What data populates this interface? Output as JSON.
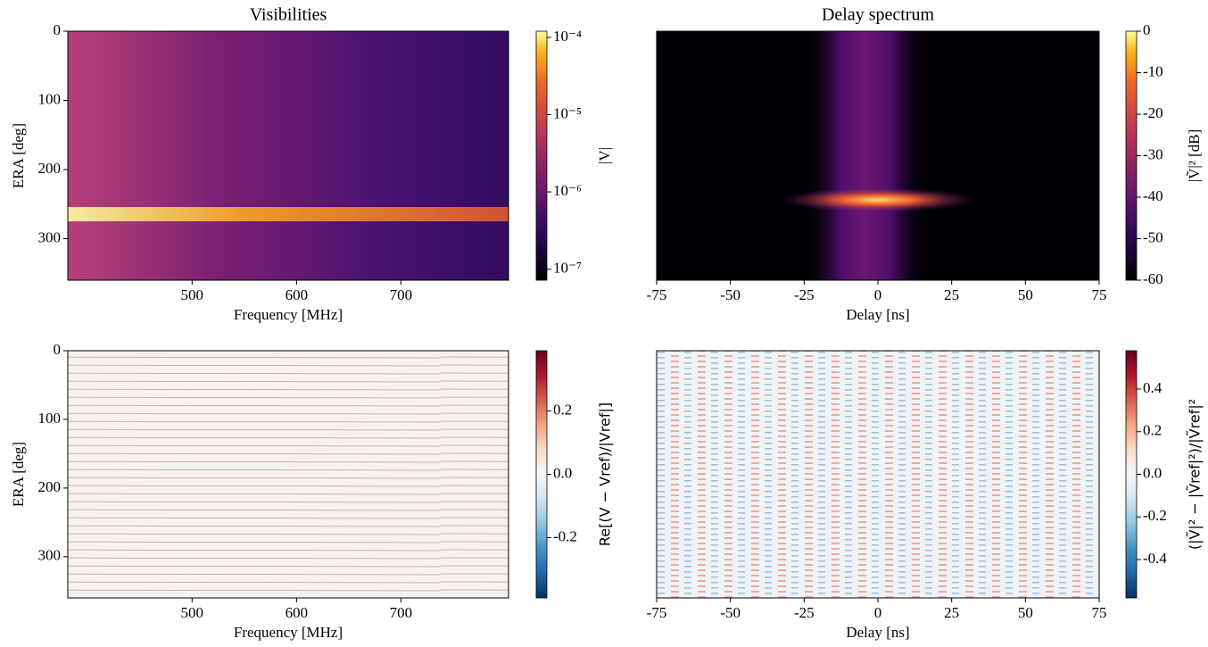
{
  "chart_data": [
    {
      "type": "heatmap",
      "title": "Visibilities",
      "xlabel": "Frequency [MHz]",
      "ylabel": "ERA [deg]",
      "xlim": [
        381,
        803
      ],
      "xticks": [
        500,
        600,
        700
      ],
      "ylim": [
        0,
        360
      ],
      "y_inverted": true,
      "yticks": [
        0,
        100,
        200,
        300
      ],
      "colorbar": {
        "label": "|V|",
        "scale": "log",
        "colormap": "inferno",
        "lim": [
          7.2e-08,
          0.00012
        ],
        "ticks": [
          {
            "value": 0.0001,
            "label": "10⁻⁴"
          },
          {
            "value": 1e-05,
            "label": "10⁻⁵"
          },
          {
            "value": 1e-06,
            "label": "10⁻⁶"
          },
          {
            "value": 1e-07,
            "label": "10⁻⁷"
          }
        ]
      }
    },
    {
      "type": "heatmap",
      "title": "Delay spectrum",
      "xlabel": "Delay [ns]",
      "xlim": [
        -75,
        75
      ],
      "xticks": [
        -75,
        -50,
        -25,
        0,
        25,
        50,
        75
      ],
      "ylim": [
        0,
        360
      ],
      "y_inverted": true,
      "colorbar": {
        "label": "|Ṽ|² [dB]",
        "scale": "linear",
        "colormap": "inferno",
        "lim": [
          -60,
          0
        ],
        "ticks": [
          0,
          -10,
          -20,
          -30,
          -40,
          -50,
          -60
        ]
      }
    },
    {
      "type": "heatmap",
      "xlabel": "Frequency [MHz]",
      "ylabel": "ERA [deg]",
      "xlim": [
        381,
        803
      ],
      "xticks": [
        500,
        600,
        700
      ],
      "ylim": [
        0,
        360
      ],
      "y_inverted": true,
      "yticks": [
        0,
        100,
        200,
        300
      ],
      "colorbar": {
        "label": "Re[(V − Vref)/|Vref|]",
        "scale": "linear",
        "colormap": "RdBu_r",
        "lim": [
          -0.39,
          0.39
        ],
        "ticks": [
          0.2,
          {
            "value": 0,
            "label": "0.0"
          },
          -0.2
        ]
      }
    },
    {
      "type": "heatmap",
      "xlabel": "Delay [ns]",
      "xlim": [
        -75,
        75
      ],
      "xticks": [
        -75,
        -50,
        -25,
        0,
        25,
        50,
        75
      ],
      "ylim": [
        0,
        360
      ],
      "y_inverted": true,
      "colorbar": {
        "label": "(|Ṽ|² − |Ṽref|²)/|Ṽref|²",
        "scale": "linear",
        "colormap": "RdBu_r",
        "lim": [
          -0.58,
          0.58
        ],
        "ticks": [
          0.4,
          0.2,
          {
            "value": 0,
            "label": "0.0"
          },
          -0.2,
          -0.4
        ]
      }
    }
  ]
}
